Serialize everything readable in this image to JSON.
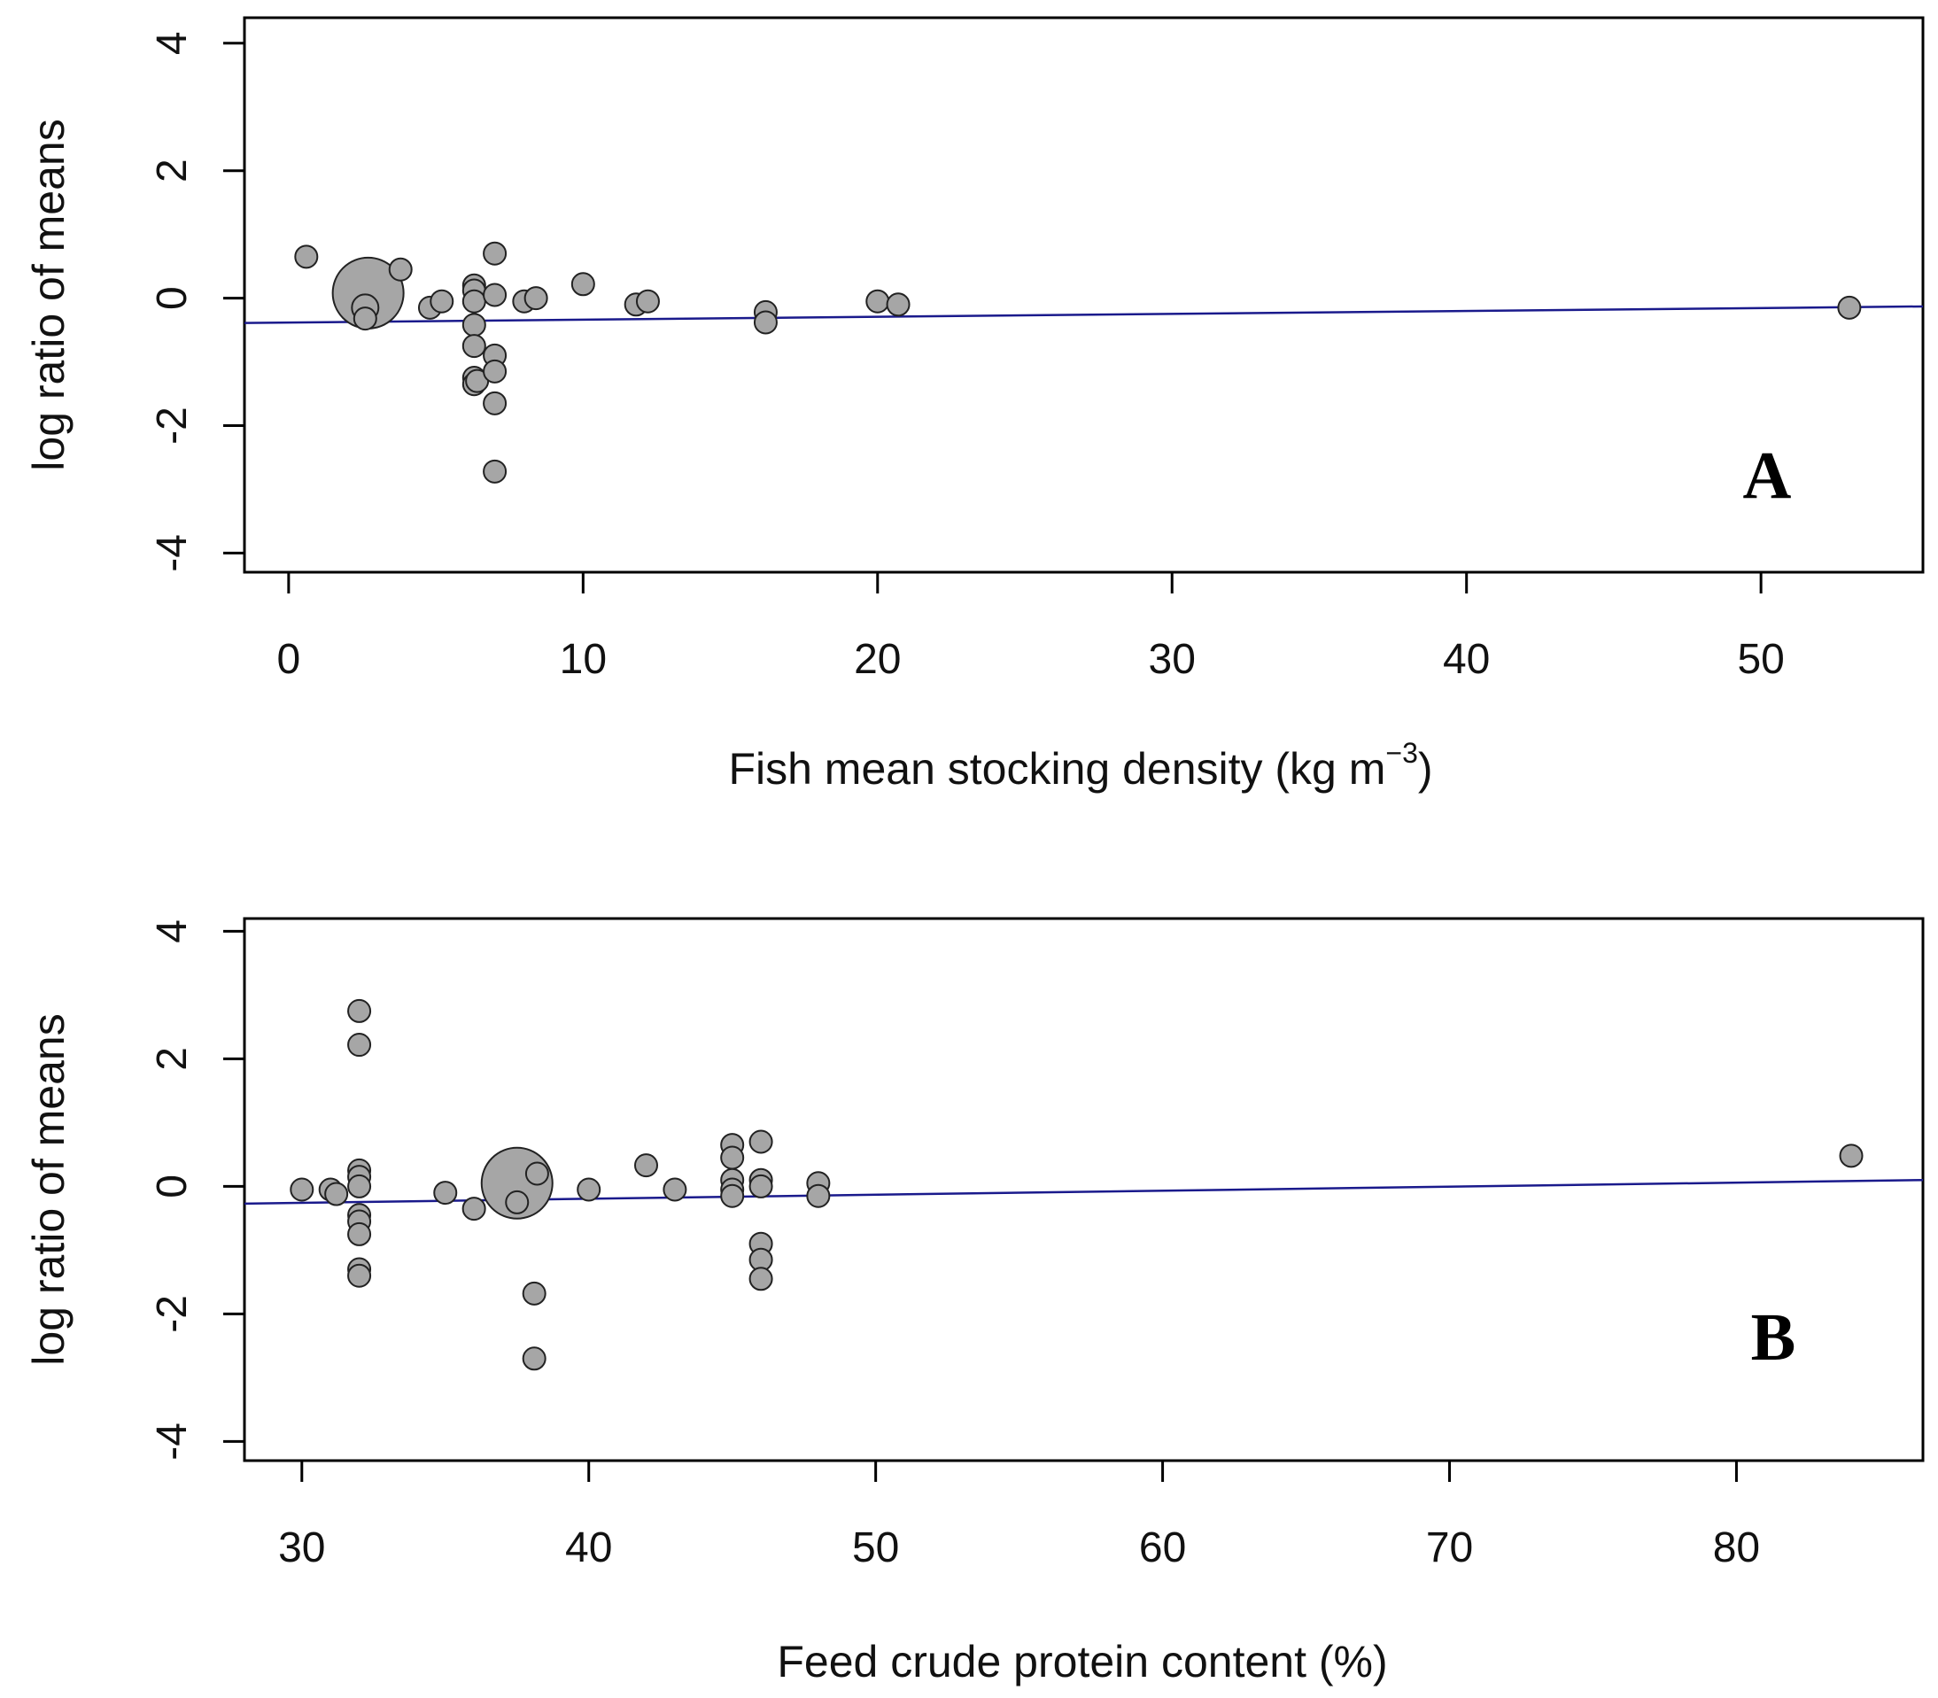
{
  "chart_data": [
    {
      "type": "scatter",
      "panel_label": "A",
      "xlabel": "Fish mean stocking density (kg m",
      "xlabel_superscript": "−3",
      "xlabel_close": ")",
      "ylabel": "log ratio of means",
      "xlim": [
        -1.5,
        55.5
      ],
      "ylim": [
        -4.3,
        4.4
      ],
      "xticks": [
        0,
        10,
        20,
        30,
        40,
        50
      ],
      "xtick_labels": [
        "0",
        "10",
        "20",
        "30",
        "40",
        "50"
      ],
      "yticks": [
        -4,
        -2,
        0,
        2,
        4
      ],
      "ytick_labels": [
        "-4",
        "-2",
        "0",
        "2",
        "4"
      ],
      "regression_line": {
        "x": [
          -1.5,
          55.5
        ],
        "y": [
          -0.39,
          -0.13
        ]
      },
      "points": [
        {
          "x": 0.6,
          "y": 0.65,
          "w": 1
        },
        {
          "x": 2.6,
          "y": -0.32,
          "w": 1
        },
        {
          "x": 2.6,
          "y": -0.15,
          "w": 1.2
        },
        {
          "x": 2.7,
          "y": 0.08,
          "w": 3.2
        },
        {
          "x": 3.8,
          "y": 0.45,
          "w": 1
        },
        {
          "x": 4.8,
          "y": -0.15,
          "w": 1
        },
        {
          "x": 5.2,
          "y": -0.05,
          "w": 1
        },
        {
          "x": 6.3,
          "y": 0.2,
          "w": 1
        },
        {
          "x": 6.3,
          "y": 0.12,
          "w": 1
        },
        {
          "x": 6.3,
          "y": -0.05,
          "w": 1
        },
        {
          "x": 6.3,
          "y": -0.42,
          "w": 1
        },
        {
          "x": 6.3,
          "y": -0.75,
          "w": 1
        },
        {
          "x": 6.3,
          "y": -1.25,
          "w": 1
        },
        {
          "x": 6.3,
          "y": -1.35,
          "w": 1
        },
        {
          "x": 6.4,
          "y": -1.3,
          "w": 1
        },
        {
          "x": 7.0,
          "y": 0.7,
          "w": 1
        },
        {
          "x": 7.0,
          "y": 0.05,
          "w": 1
        },
        {
          "x": 7.0,
          "y": -0.9,
          "w": 1
        },
        {
          "x": 7.0,
          "y": -1.15,
          "w": 1
        },
        {
          "x": 7.0,
          "y": -1.65,
          "w": 1
        },
        {
          "x": 7.0,
          "y": -2.72,
          "w": 1
        },
        {
          "x": 8.0,
          "y": -0.05,
          "w": 1
        },
        {
          "x": 8.4,
          "y": 0.0,
          "w": 1
        },
        {
          "x": 10.0,
          "y": 0.22,
          "w": 1
        },
        {
          "x": 11.8,
          "y": -0.1,
          "w": 1
        },
        {
          "x": 12.2,
          "y": -0.05,
          "w": 1
        },
        {
          "x": 16.2,
          "y": -0.22,
          "w": 1
        },
        {
          "x": 16.2,
          "y": -0.38,
          "w": 1
        },
        {
          "x": 20.0,
          "y": -0.05,
          "w": 1
        },
        {
          "x": 20.7,
          "y": -0.1,
          "w": 1
        },
        {
          "x": 53.0,
          "y": -0.15,
          "w": 1
        }
      ]
    },
    {
      "type": "scatter",
      "panel_label": "B",
      "xlabel": "Feed crude protein content (%)",
      "ylabel": "log ratio of means",
      "xlim": [
        28.0,
        86.5
      ],
      "ylim": [
        -4.3,
        4.2
      ],
      "xticks": [
        30,
        40,
        50,
        60,
        70,
        80
      ],
      "xtick_labels": [
        "30",
        "40",
        "50",
        "60",
        "70",
        "80"
      ],
      "yticks": [
        -4,
        -2,
        0,
        2,
        4
      ],
      "ytick_labels": [
        "-4",
        "-2",
        "0",
        "2",
        "4"
      ],
      "regression_line": {
        "x": [
          28.0,
          86.5
        ],
        "y": [
          -0.27,
          0.1
        ]
      },
      "points": [
        {
          "x": 30.0,
          "y": -0.05,
          "w": 1
        },
        {
          "x": 31.0,
          "y": -0.05,
          "w": 1
        },
        {
          "x": 31.2,
          "y": -0.12,
          "w": 1
        },
        {
          "x": 32.0,
          "y": 2.75,
          "w": 1
        },
        {
          "x": 32.0,
          "y": 2.22,
          "w": 1
        },
        {
          "x": 32.0,
          "y": 0.25,
          "w": 1
        },
        {
          "x": 32.0,
          "y": 0.15,
          "w": 1
        },
        {
          "x": 32.0,
          "y": 0.0,
          "w": 1
        },
        {
          "x": 32.0,
          "y": -0.45,
          "w": 1
        },
        {
          "x": 32.0,
          "y": -0.55,
          "w": 1
        },
        {
          "x": 32.0,
          "y": -0.75,
          "w": 1
        },
        {
          "x": 32.0,
          "y": -1.3,
          "w": 1
        },
        {
          "x": 32.0,
          "y": -1.4,
          "w": 1
        },
        {
          "x": 35.0,
          "y": -0.1,
          "w": 1
        },
        {
          "x": 36.0,
          "y": -0.35,
          "w": 1
        },
        {
          "x": 37.5,
          "y": -0.25,
          "w": 1
        },
        {
          "x": 37.5,
          "y": 0.05,
          "w": 3.2
        },
        {
          "x": 38.2,
          "y": 0.2,
          "w": 1
        },
        {
          "x": 38.1,
          "y": -1.68,
          "w": 1
        },
        {
          "x": 38.1,
          "y": -2.7,
          "w": 1
        },
        {
          "x": 40.0,
          "y": -0.05,
          "w": 1
        },
        {
          "x": 42.0,
          "y": 0.33,
          "w": 1
        },
        {
          "x": 43.0,
          "y": -0.05,
          "w": 1
        },
        {
          "x": 45.0,
          "y": 0.65,
          "w": 1
        },
        {
          "x": 45.0,
          "y": 0.45,
          "w": 1
        },
        {
          "x": 45.0,
          "y": 0.1,
          "w": 1
        },
        {
          "x": 45.0,
          "y": -0.05,
          "w": 1
        },
        {
          "x": 45.0,
          "y": -0.15,
          "w": 1
        },
        {
          "x": 46.0,
          "y": 0.7,
          "w": 1
        },
        {
          "x": 46.0,
          "y": 0.1,
          "w": 1
        },
        {
          "x": 46.0,
          "y": 0.0,
          "w": 1
        },
        {
          "x": 46.0,
          "y": -0.9,
          "w": 1
        },
        {
          "x": 46.0,
          "y": -1.15,
          "w": 1
        },
        {
          "x": 46.0,
          "y": -1.45,
          "w": 1
        },
        {
          "x": 48.0,
          "y": 0.05,
          "w": 1
        },
        {
          "x": 48.0,
          "y": -0.15,
          "w": 1
        },
        {
          "x": 84.0,
          "y": 0.48,
          "w": 1
        }
      ]
    }
  ],
  "colors": {
    "point_fill": "#a6a6a6",
    "point_stroke": "#222222",
    "regression_line": "#1a1a8c",
    "frame": "#000000"
  }
}
